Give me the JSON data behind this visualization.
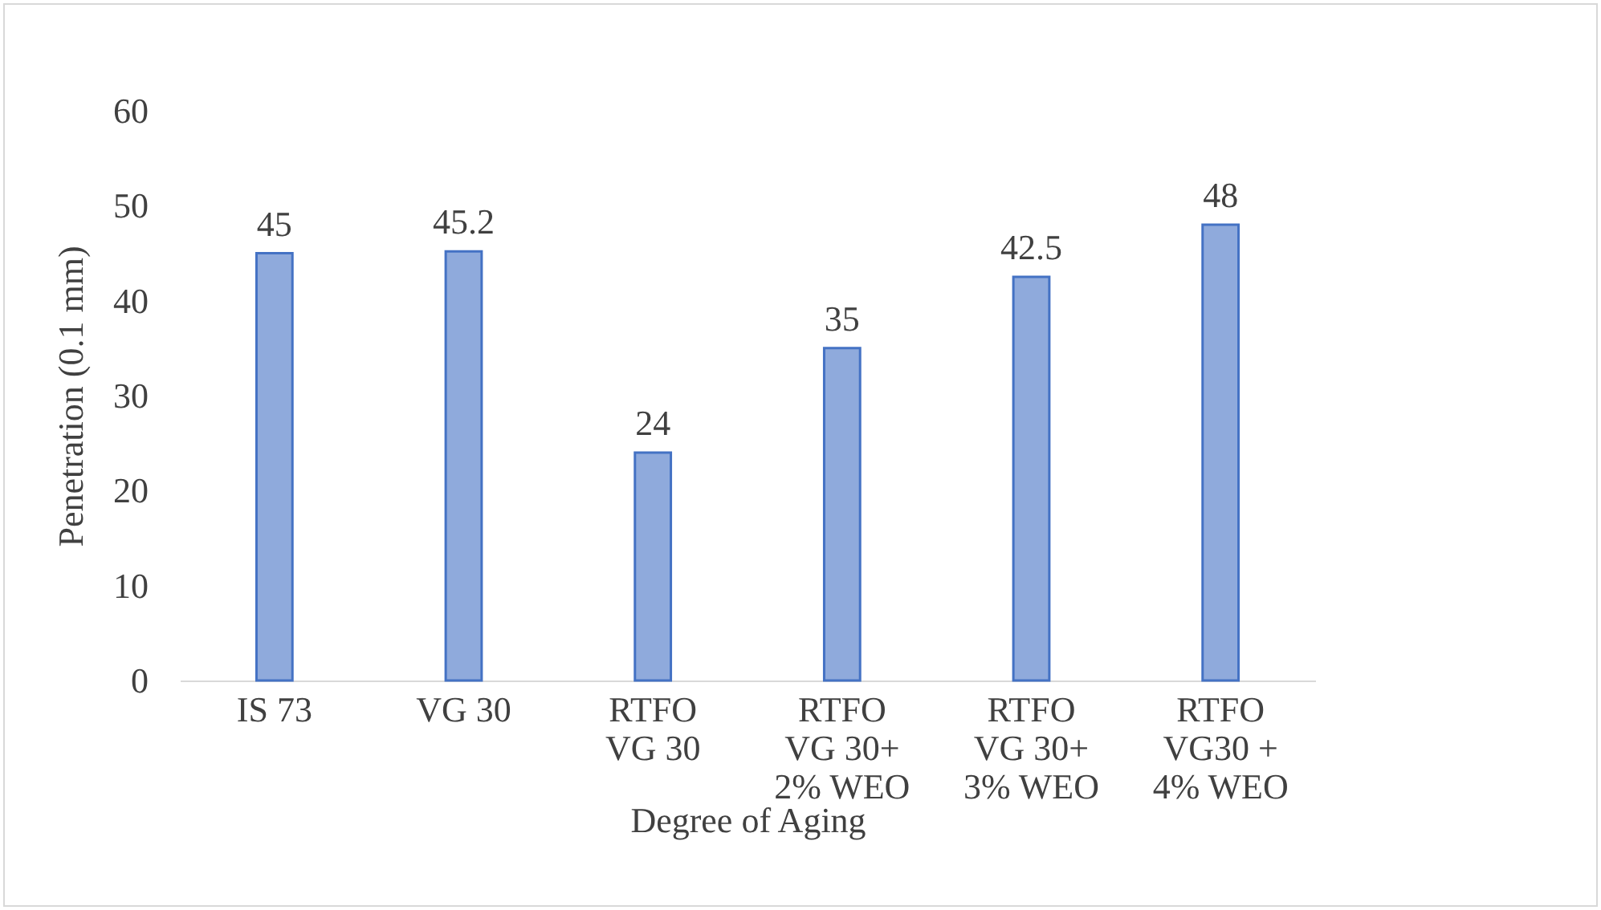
{
  "chart_data": {
    "type": "bar",
    "xlabel": "Degree of Aging",
    "ylabel": "Penetration (0.1 mm)",
    "categories": [
      "IS 73",
      "VG 30",
      "RTFO\nVG 30",
      "RTFO\nVG 30+\n2% WEO",
      "RTFO\nVG 30+\n3% WEO",
      "RTFO\nVG30 +\n4% WEO"
    ],
    "values": [
      45,
      45.2,
      24,
      35,
      42.5,
      48
    ],
    "color": "#8faadc",
    "ylim": [
      0,
      60
    ],
    "yticks": [
      0,
      10,
      20,
      30,
      40,
      50,
      60
    ],
    "data_labels": true
  }
}
